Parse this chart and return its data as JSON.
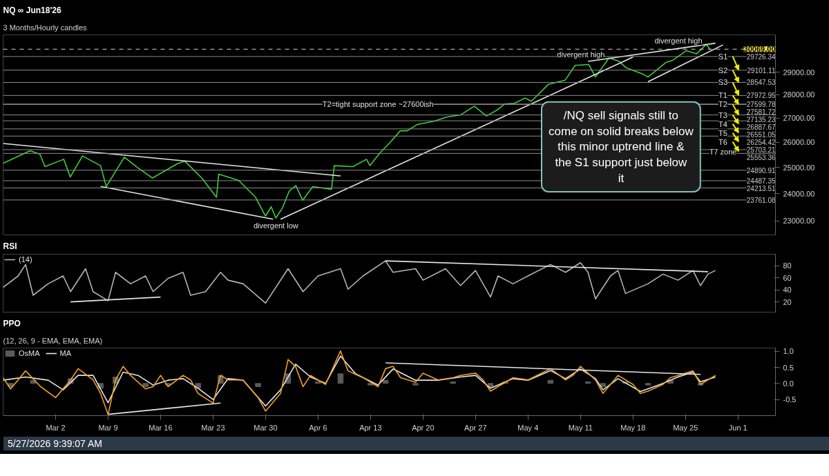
{
  "chart_data": [
    {
      "type": "line",
      "title": "NQ ∞ Jun18'26",
      "subtitle": "3 Months/Hourly candles",
      "log": "y",
      "grid": false,
      "tick_labels": "y",
      "xlim": [
        "2026-02-23",
        "2026-06-06"
      ],
      "ylim": [
        22500,
        30750
      ],
      "yticks": [
        {
          "value": 23000,
          "label": "23000.00"
        },
        {
          "value": 24000,
          "label": "24000.00"
        },
        {
          "value": 25000,
          "label": "25000.00"
        },
        {
          "value": 26000,
          "label": "26000.00"
        },
        {
          "value": 27000,
          "label": "27000.00"
        },
        {
          "value": 28000,
          "label": "28000.00"
        },
        {
          "value": 29000,
          "label": "29000.00"
        }
      ],
      "series": [
        {
          "color": "#3ccf3c",
          "x": [
            "2026-02-23T00:00",
            "2026-02-26T14:00",
            "2026-02-27T22:00",
            "2026-02-28T14:00",
            "2026-03-03T02:00",
            "2026-03-03T23:00",
            "2026-03-05T14:00",
            "2026-03-08T00:00",
            "2026-03-08T18:00",
            "2026-03-11T04:00",
            "2026-03-12T23:00",
            "2026-03-14T22:00",
            "2026-03-18T08:00",
            "2026-03-19T06:00",
            "2026-03-21T12:00",
            "2026-03-23T11:00",
            "2026-03-23T18:00",
            "2026-03-26T10:00",
            "2026-03-28T16:00",
            "2026-03-30T00:00",
            "2026-03-30T18:00",
            "2026-03-31T09:00",
            "2026-04-01T06:00",
            "2026-04-02T04:00",
            "2026-04-03T01:00",
            "2026-04-03T23:00",
            "2026-04-05T07:00",
            "2026-04-07T19:00",
            "2026-04-08T04:00",
            "2026-04-10T16:00",
            "2026-04-12T11:00",
            "2026-04-12T22:00",
            "2026-04-14T06:00",
            "2026-04-15T15:00",
            "2026-04-16T23:00",
            "2026-04-17T21:00",
            "2026-04-19T05:00",
            "2026-04-21T11:00",
            "2026-04-23T06:00",
            "2026-04-25T01:00",
            "2026-04-26T20:00",
            "2026-04-28T11:00",
            "2026-04-29T23:00",
            "2026-04-30T21:00",
            "2026-05-02T05:00",
            "2026-05-03T14:00",
            "2026-05-04T11:00",
            "2026-05-06T17:00",
            "2026-05-08T23:00",
            "2026-05-10T07:00",
            "2026-05-12T02:00",
            "2026-05-13T00:00",
            "2026-05-14T19:00",
            "2026-05-16T03:00",
            "2026-05-17T01:00",
            "2026-05-19T07:00",
            "2026-05-20T00:00",
            "2026-05-22T10:00",
            "2026-05-23T08:00",
            "2026-05-25T03:00",
            "2026-05-26T11:00",
            "2026-05-27T19:00",
            "2026-05-28T06:00"
          ],
          "values": [
            25160,
            25660,
            25520,
            25030,
            25320,
            24630,
            25450,
            25070,
            24260,
            25400,
            24990,
            24590,
            25160,
            25240,
            24590,
            23860,
            24740,
            24500,
            23860,
            23170,
            23510,
            23100,
            23470,
            24100,
            24300,
            23750,
            24260,
            24160,
            25070,
            25030,
            25320,
            25070,
            25570,
            26000,
            26470,
            26470,
            26730,
            26870,
            27050,
            27140,
            27510,
            27090,
            27360,
            27600,
            27630,
            27860,
            27720,
            28460,
            28650,
            29320,
            29360,
            28790,
            29660,
            29510,
            29220,
            28930,
            28790,
            29460,
            29560,
            30000,
            29850,
            30300,
            30069
          ]
        },
        {
          "color": "#e6e6e6",
          "x": [
            "2026-02-23",
            "2026-04-09"
          ],
          "values": [
            25950,
            24670
          ]
        },
        {
          "color": "#e6e6e6",
          "x": [
            "2026-04-01",
            "2026-05-18"
          ],
          "values": [
            23060,
            29700
          ]
        },
        {
          "color": "#e6e6e6",
          "x": [
            "2026-05-20",
            "2026-05-30"
          ],
          "values": [
            28580,
            30270
          ]
        },
        {
          "color": "#e6e6e6",
          "x": [
            "2026-05-12",
            "2026-05-29"
          ],
          "values": [
            29500,
            30350
          ]
        },
        {
          "color": "#e6e6e6",
          "x": [
            "2026-03-08",
            "2026-03-31"
          ],
          "values": [
            24270,
            23060
          ]
        }
      ],
      "ref_lines": [
        {
          "axis": "y",
          "value": 30069,
          "label": "30069.00",
          "line_style": "dashed",
          "color": "#d8d8d8"
        },
        {
          "axis": "y",
          "value": 29726.34,
          "label": "29726.34"
        },
        {
          "axis": "y",
          "value": 29101.11,
          "label": "29101.11"
        },
        {
          "axis": "y",
          "value": 28547.53,
          "label": "28547.53"
        },
        {
          "axis": "y",
          "value": 27972.95,
          "label": "27972.95"
        },
        {
          "axis": "y",
          "value": 27599.78,
          "label": "27599.78"
        },
        {
          "axis": "y",
          "value": 27581.72,
          "label": "27581.72"
        },
        {
          "axis": "y",
          "value": 27135.23,
          "label": "27135.23"
        },
        {
          "axis": "y",
          "value": 26887.67,
          "label": "26887.67"
        },
        {
          "axis": "y",
          "value": 26551.05,
          "label": "26551.05"
        },
        {
          "axis": "y",
          "value": 26254.42,
          "label": "26254.42"
        },
        {
          "axis": "y",
          "value": 25703.21,
          "label": "25703.21"
        },
        {
          "axis": "y",
          "value": 25553.36,
          "label": "25553.36"
        },
        {
          "axis": "y",
          "value": 24890.91,
          "label": "24890.91"
        },
        {
          "axis": "y",
          "value": 24487.35,
          "label": "24487.35"
        },
        {
          "axis": "y",
          "value": 24213.51,
          "label": "24213.51"
        },
        {
          "axis": "y",
          "value": 23761.08,
          "label": "23761.08"
        }
      ],
      "annotations": [
        {
          "text": "divergent high",
          "x": "2026-05-14T19:00",
          "y": 29660
        },
        {
          "text": "divergent high",
          "x": "2026-05-27T19:00",
          "y": 30300
        },
        {
          "text": "S1",
          "x": "2026-05-30",
          "y": 29726.34
        },
        {
          "text": "S2",
          "x": "2026-05-30",
          "y": 29101.11
        },
        {
          "text": "S3",
          "x": "2026-05-30",
          "y": 28547.53
        },
        {
          "text": "T1",
          "x": "2026-05-30",
          "y": 27972.95
        },
        {
          "text": "T2",
          "x": "2026-05-30",
          "y": 27590
        },
        {
          "text": "T3",
          "x": "2026-05-30",
          "y": 27135.23
        },
        {
          "text": "T4",
          "x": "2026-05-30",
          "y": 26887.67
        },
        {
          "text": "T5",
          "x": "2026-05-30",
          "y": 26551.05
        },
        {
          "text": "T6",
          "x": "2026-05-30",
          "y": 26254.42
        },
        {
          "text": "T7 zone",
          "x": "2026-05-30",
          "y": 25628
        },
        {
          "text": "T2=tight support zone ~27600ish",
          "x": "2026-04-14",
          "y": 27590
        },
        {
          "text": "divergent low",
          "x": "2026-03-31T09:00",
          "y": 23100
        },
        "/NQ sell signals still to come on solid breaks below this minor uptrend line & the S1 support just below it"
      ]
    },
    {
      "type": "line",
      "title": "RSI",
      "grid": false,
      "tick_labels": "y",
      "legend": "top left",
      "xlim": [
        "2026-02-23",
        "2026-06-06"
      ],
      "ylim": [
        3,
        99
      ],
      "yticks": [
        20,
        40,
        60,
        80
      ],
      "series": [
        {
          "name": "(14)",
          "color": "#b4b4b4",
          "x": [
            "2026-02-23",
            "2026-02-25",
            "2026-02-26",
            "2026-02-27",
            "2026-03-01",
            "2026-03-03",
            "2026-03-04",
            "2026-03-06",
            "2026-03-07",
            "2026-03-09",
            "2026-03-10",
            "2026-03-12",
            "2026-03-14",
            "2026-03-15",
            "2026-03-17",
            "2026-03-19",
            "2026-03-20",
            "2026-03-22",
            "2026-03-24",
            "2026-03-25",
            "2026-03-27",
            "2026-03-30",
            "2026-04-02",
            "2026-04-04",
            "2026-04-06",
            "2026-04-09",
            "2026-04-10",
            "2026-04-12",
            "2026-04-15",
            "2026-04-16",
            "2026-04-19",
            "2026-04-20",
            "2026-04-23",
            "2026-04-25",
            "2026-04-27",
            "2026-04-29",
            "2026-04-30",
            "2026-05-02",
            "2026-05-04",
            "2026-05-07",
            "2026-05-09",
            "2026-05-11",
            "2026-05-12",
            "2026-05-13",
            "2026-05-15",
            "2026-05-16",
            "2026-05-17",
            "2026-05-20",
            "2026-05-22",
            "2026-05-24",
            "2026-05-26",
            "2026-05-27",
            "2026-05-28",
            "2026-05-29"
          ],
          "values": [
            44,
            63,
            82,
            31,
            50,
            63,
            37,
            75,
            37,
            22,
            69,
            50,
            63,
            37,
            59,
            69,
            31,
            37,
            69,
            56,
            50,
            18,
            75,
            37,
            63,
            75,
            41,
            63,
            88,
            69,
            75,
            56,
            75,
            47,
            72,
            28,
            63,
            50,
            63,
            82,
            69,
            85,
            69,
            25,
            63,
            72,
            34,
            50,
            66,
            56,
            72,
            47,
            66,
            72
          ]
        },
        {
          "color": "#e6e6e6",
          "x": [
            "2026-03-04",
            "2026-03-16"
          ],
          "values": [
            20,
            28
          ]
        },
        {
          "color": "#e6e6e6",
          "x": [
            "2026-04-15",
            "2026-05-28"
          ],
          "values": [
            88,
            70
          ]
        }
      ]
    },
    {
      "type": "line",
      "title": "PPO",
      "subtitle": "(12, 26, 9 - EMA, EMA, EMA)",
      "grid": false,
      "legend": "top left",
      "xlim": [
        "2026-02-23",
        "2026-06-06"
      ],
      "xticks": [
        {
          "value": "2026-03-02",
          "label": "Mar 2"
        },
        {
          "value": "2026-03-09",
          "label": "Mar 9"
        },
        {
          "value": "2026-03-16",
          "label": "Mar 16"
        },
        {
          "value": "2026-03-23",
          "label": "Mar 23"
        },
        {
          "value": "2026-03-30",
          "label": "Mar 30"
        },
        {
          "value": "2026-04-06",
          "label": "Apr 6"
        },
        {
          "value": "2026-04-13",
          "label": "Apr 13"
        },
        {
          "value": "2026-04-20",
          "label": "Apr 20"
        },
        {
          "value": "2026-04-27",
          "label": "Apr 27"
        },
        {
          "value": "2026-05-04",
          "label": "May 4"
        },
        {
          "value": "2026-05-11",
          "label": "May 11"
        },
        {
          "value": "2026-05-18",
          "label": "May 18"
        },
        {
          "value": "2026-05-25",
          "label": "May 25"
        },
        {
          "value": "2026-06-01",
          "label": "Jun 1"
        }
      ],
      "ylim": [
        -1.0,
        1.1
      ],
      "yticks": [
        -0.5,
        {
          "value": 0,
          "label": "0.0"
        },
        0.5,
        {
          "value": 1,
          "label": "1.0"
        }
      ],
      "series": [
        {
          "type": "bar",
          "name": "OsMA",
          "color": "#5a5a5a",
          "x": [
            "2026-02-24",
            "2026-02-27",
            "2026-03-04",
            "2026-03-08",
            "2026-03-10",
            "2026-03-14",
            "2026-03-17",
            "2026-03-21",
            "2026-03-24",
            "2026-03-29",
            "2026-04-02",
            "2026-04-06",
            "2026-04-09",
            "2026-04-13",
            "2026-04-15",
            "2026-04-19",
            "2026-04-24",
            "2026-04-29",
            "2026-05-01",
            "2026-05-07",
            "2026-05-12",
            "2026-05-14",
            "2026-05-17",
            "2026-05-20",
            "2026-05-23",
            "2026-05-27"
          ],
          "values": [
            -0.1,
            0.1,
            0.15,
            -0.15,
            0.2,
            -0.1,
            -0.05,
            -0.15,
            0.25,
            -0.1,
            0.3,
            0.05,
            0.3,
            -0.05,
            0.1,
            -0.05,
            0.05,
            -0.1,
            0.05,
            0.1,
            0.05,
            -0.1,
            0.05,
            -0.05,
            0.1,
            -0.05
          ]
        },
        {
          "name": "MA",
          "color": "#e6e6e6",
          "x": [
            "2026-02-23",
            "2026-02-26",
            "2026-03-01",
            "2026-03-03",
            "2026-03-05",
            "2026-03-07",
            "2026-03-09",
            "2026-03-11",
            "2026-03-13",
            "2026-03-15",
            "2026-03-17",
            "2026-03-19",
            "2026-03-21",
            "2026-03-23",
            "2026-03-25",
            "2026-03-27",
            "2026-03-30",
            "2026-04-01",
            "2026-04-03",
            "2026-04-05",
            "2026-04-07",
            "2026-04-09",
            "2026-04-11",
            "2026-04-14",
            "2026-04-16",
            "2026-04-19",
            "2026-04-22",
            "2026-04-25",
            "2026-04-27",
            "2026-04-29",
            "2026-05-02",
            "2026-05-04",
            "2026-05-07",
            "2026-05-09",
            "2026-05-11",
            "2026-05-13",
            "2026-05-14",
            "2026-05-16",
            "2026-05-19",
            "2026-05-22",
            "2026-05-24",
            "2026-05-26",
            "2026-05-27",
            "2026-05-29"
          ],
          "values": [
            0.1,
            0.2,
            0.1,
            -0.2,
            0.25,
            0.25,
            -0.6,
            0.35,
            0.25,
            -0.05,
            0.1,
            0.15,
            -0.15,
            -0.5,
            0.15,
            0.1,
            -0.7,
            -0.2,
            0.6,
            0.2,
            0.0,
            0.85,
            0.3,
            -0.05,
            0.45,
            0.1,
            0.1,
            0.2,
            0.25,
            -0.15,
            0.15,
            0.1,
            0.4,
            0.15,
            0.45,
            0.15,
            -0.2,
            0.15,
            -0.25,
            0.0,
            0.2,
            0.35,
            0.05,
            0.2
          ]
        },
        {
          "color": "#f0a028",
          "x": [
            "2026-02-23",
            "2026-02-24",
            "2026-02-26",
            "2026-02-28",
            "2026-03-02",
            "2026-03-04",
            "2026-03-05",
            "2026-03-07",
            "2026-03-08",
            "2026-03-09",
            "2026-03-10",
            "2026-03-11",
            "2026-03-12",
            "2026-03-14",
            "2026-03-15",
            "2026-03-16",
            "2026-03-17",
            "2026-03-19",
            "2026-03-20",
            "2026-03-21",
            "2026-03-23",
            "2026-03-24",
            "2026-03-25",
            "2026-03-27",
            "2026-03-29",
            "2026-03-30",
            "2026-04-01",
            "2026-04-02",
            "2026-04-03",
            "2026-04-04",
            "2026-04-05",
            "2026-04-07",
            "2026-04-09",
            "2026-04-10",
            "2026-04-12",
            "2026-04-14",
            "2026-04-15",
            "2026-04-16",
            "2026-04-17",
            "2026-04-19",
            "2026-04-20",
            "2026-04-22",
            "2026-04-24",
            "2026-04-25",
            "2026-04-27",
            "2026-04-28",
            "2026-04-29",
            "2026-05-01",
            "2026-05-02",
            "2026-05-04",
            "2026-05-07",
            "2026-05-09",
            "2026-05-10",
            "2026-05-11",
            "2026-05-13",
            "2026-05-14",
            "2026-05-15",
            "2026-05-16",
            "2026-05-18",
            "2026-05-19",
            "2026-05-20",
            "2026-05-22",
            "2026-05-23",
            "2026-05-24",
            "2026-05-26",
            "2026-05-27",
            "2026-05-29"
          ],
          "values": [
            0.18,
            -0.17,
            0.39,
            -0.1,
            -0.44,
            0.11,
            0.46,
            0.11,
            -0.31,
            -0.97,
            0.11,
            0.53,
            0.25,
            -0.17,
            -0.1,
            0.25,
            -0.1,
            0.25,
            0.11,
            -0.31,
            -0.61,
            0.25,
            0.11,
            0.11,
            -0.44,
            -0.86,
            -0.31,
            0.74,
            0.53,
            -0.1,
            0.25,
            -0.03,
            1.01,
            0.39,
            0.18,
            -0.1,
            0.46,
            0.53,
            0.18,
            0.04,
            0.32,
            0.11,
            0.18,
            0.25,
            0.32,
            0.11,
            -0.24,
            0.04,
            0.18,
            0.11,
            0.46,
            0.11,
            0.25,
            0.53,
            0.11,
            -0.31,
            -0.03,
            0.25,
            -0.03,
            -0.31,
            -0.24,
            -0.03,
            0.18,
            0.25,
            0.39,
            -0.03,
            0.25
          ]
        },
        {
          "color": "#e6e6e6",
          "x": [
            "2026-03-09",
            "2026-03-24"
          ],
          "values": [
            -0.96,
            -0.61
          ]
        },
        {
          "color": "#e6e6e6",
          "x": [
            "2026-04-15",
            "2026-05-27"
          ],
          "values": [
            0.64,
            0.28
          ]
        }
      ],
      "annotations": [
        "5/27/2026 9:39:07 AM"
      ]
    }
  ]
}
